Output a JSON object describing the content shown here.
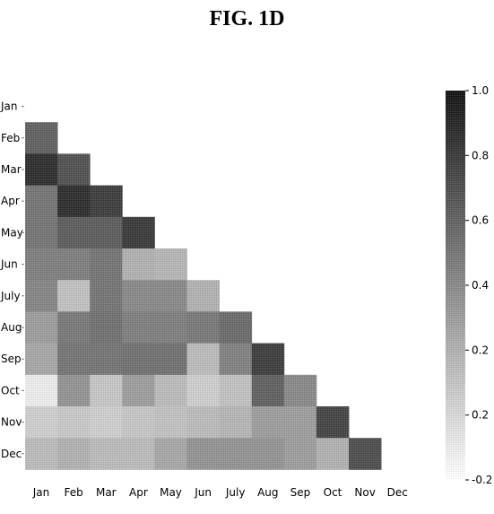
{
  "figure": {
    "title": "FIG. 1D"
  },
  "chart_data": {
    "type": "heatmap",
    "title": "FIG. 1D",
    "xlabel": "",
    "ylabel": "",
    "x_categories": [
      "Jan",
      "Feb",
      "Mar",
      "Apr",
      "May",
      "Jun",
      "July",
      "Aug",
      "Sep",
      "Oct",
      "Nov",
      "Dec"
    ],
    "y_categories": [
      "Jan",
      "Feb",
      "Mar",
      "Apr",
      "May",
      "Jun",
      "July",
      "Aug",
      "Sep",
      "Oct",
      "Nov",
      "Dec"
    ],
    "mask": "lower-triangle (diagonal and upper triangle blank)",
    "values": [
      [],
      [
        0.6
      ],
      [
        0.86,
        0.68
      ],
      [
        0.5,
        0.86,
        0.78
      ],
      [
        0.5,
        0.62,
        0.62,
        0.8
      ],
      [
        0.45,
        0.45,
        0.5,
        0.2,
        0.18
      ],
      [
        0.42,
        0.12,
        0.5,
        0.4,
        0.4,
        0.2
      ],
      [
        0.3,
        0.48,
        0.52,
        0.45,
        0.45,
        0.48,
        0.55
      ],
      [
        0.25,
        0.5,
        0.5,
        0.52,
        0.52,
        0.15,
        0.44,
        0.78
      ],
      [
        -0.1,
        0.35,
        0.1,
        0.3,
        0.15,
        0.05,
        0.12,
        0.6,
        0.4
      ],
      [
        0.05,
        0.08,
        0.05,
        0.1,
        0.12,
        0.15,
        0.18,
        0.3,
        0.3,
        0.75
      ],
      [
        0.15,
        0.2,
        0.15,
        0.15,
        0.25,
        0.35,
        0.35,
        0.35,
        0.3,
        0.2,
        0.7
      ]
    ],
    "colorbar": {
      "ticks": [
        "1.0",
        "0.8",
        "0.6",
        "0.4",
        "0.2",
        "0.2",
        "-0.2"
      ],
      "range": [
        -0.2,
        1.0
      ],
      "colors": {
        "low": "#ffffff",
        "high": "#111111"
      }
    },
    "grid": false,
    "legend": "right"
  }
}
